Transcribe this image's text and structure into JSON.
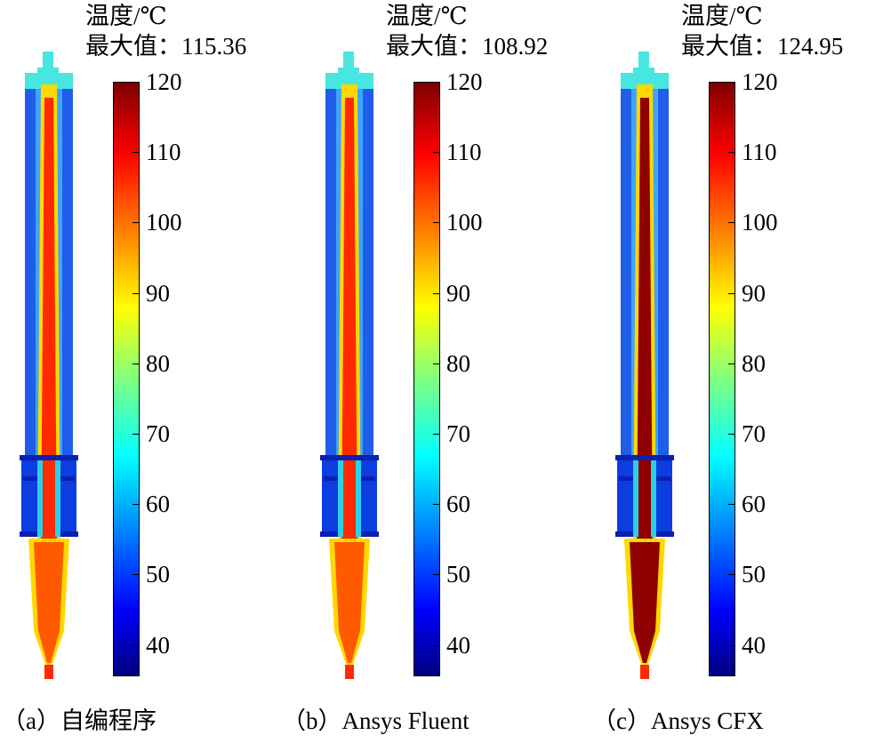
{
  "panels": [
    {
      "title_line": "温度/℃",
      "max_label": "最大值：",
      "max_value": "115.36",
      "caption": "（a）自编程序"
    },
    {
      "title_line": "温度/℃",
      "max_label": "最大值：",
      "max_value": "108.92",
      "caption": "（b）Ansys Fluent"
    },
    {
      "title_line": "温度/℃",
      "max_label": "最大值：",
      "max_value": "124.95",
      "caption": "（c）Ansys CFX"
    }
  ],
  "colorbar": {
    "ticks": [
      "120",
      "110",
      "100",
      "90",
      "80",
      "70",
      "60",
      "50",
      "40"
    ],
    "min": 35,
    "max": 120,
    "colormap": [
      "#00007f",
      "#0000ff",
      "#007fff",
      "#00ffff",
      "#7fff7f",
      "#ffff00",
      "#ff7f00",
      "#ff0000",
      "#7f0000"
    ]
  },
  "colors": {
    "shell": "#1e5ee8",
    "shell_dark": "#0b1fb0",
    "cap": "#48e6e0",
    "core_hot": "#ff2a00",
    "core_warm": "#ffd800",
    "core_deep": "#8f0000",
    "bulb": "#ff5a00"
  }
}
